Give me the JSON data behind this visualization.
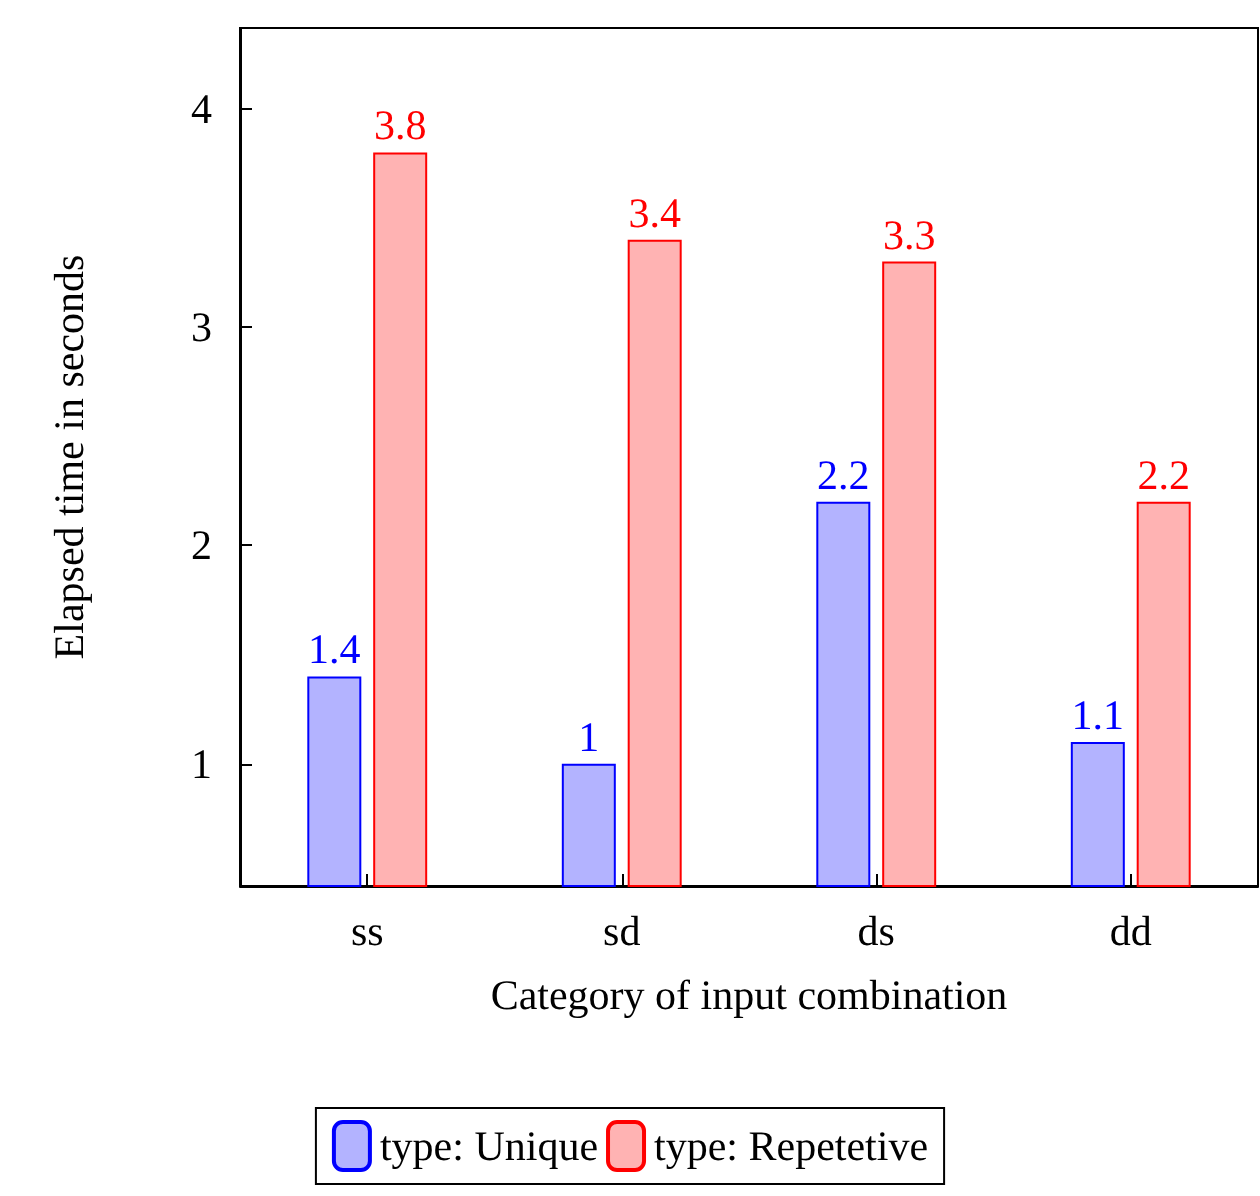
{
  "chart_data": {
    "type": "bar",
    "xlabel": "Category of input combination",
    "ylabel": "Elapsed time in seconds",
    "categories": [
      "ss",
      "sd",
      "ds",
      "dd"
    ],
    "series": [
      {
        "name": "type: Unique",
        "color": "#b3b3ff",
        "values": [
          1.4,
          1,
          2.2,
          1.1
        ]
      },
      {
        "name": "type: Repetetive",
        "color": "#ffb3b3",
        "values": [
          3.8,
          3.4,
          3.3,
          2.2
        ]
      }
    ],
    "ylim": [
      0.44,
      4.37
    ],
    "yticks": [
      1,
      2,
      3,
      4
    ],
    "data_labels": true,
    "legend": "bottom",
    "grid": false
  }
}
